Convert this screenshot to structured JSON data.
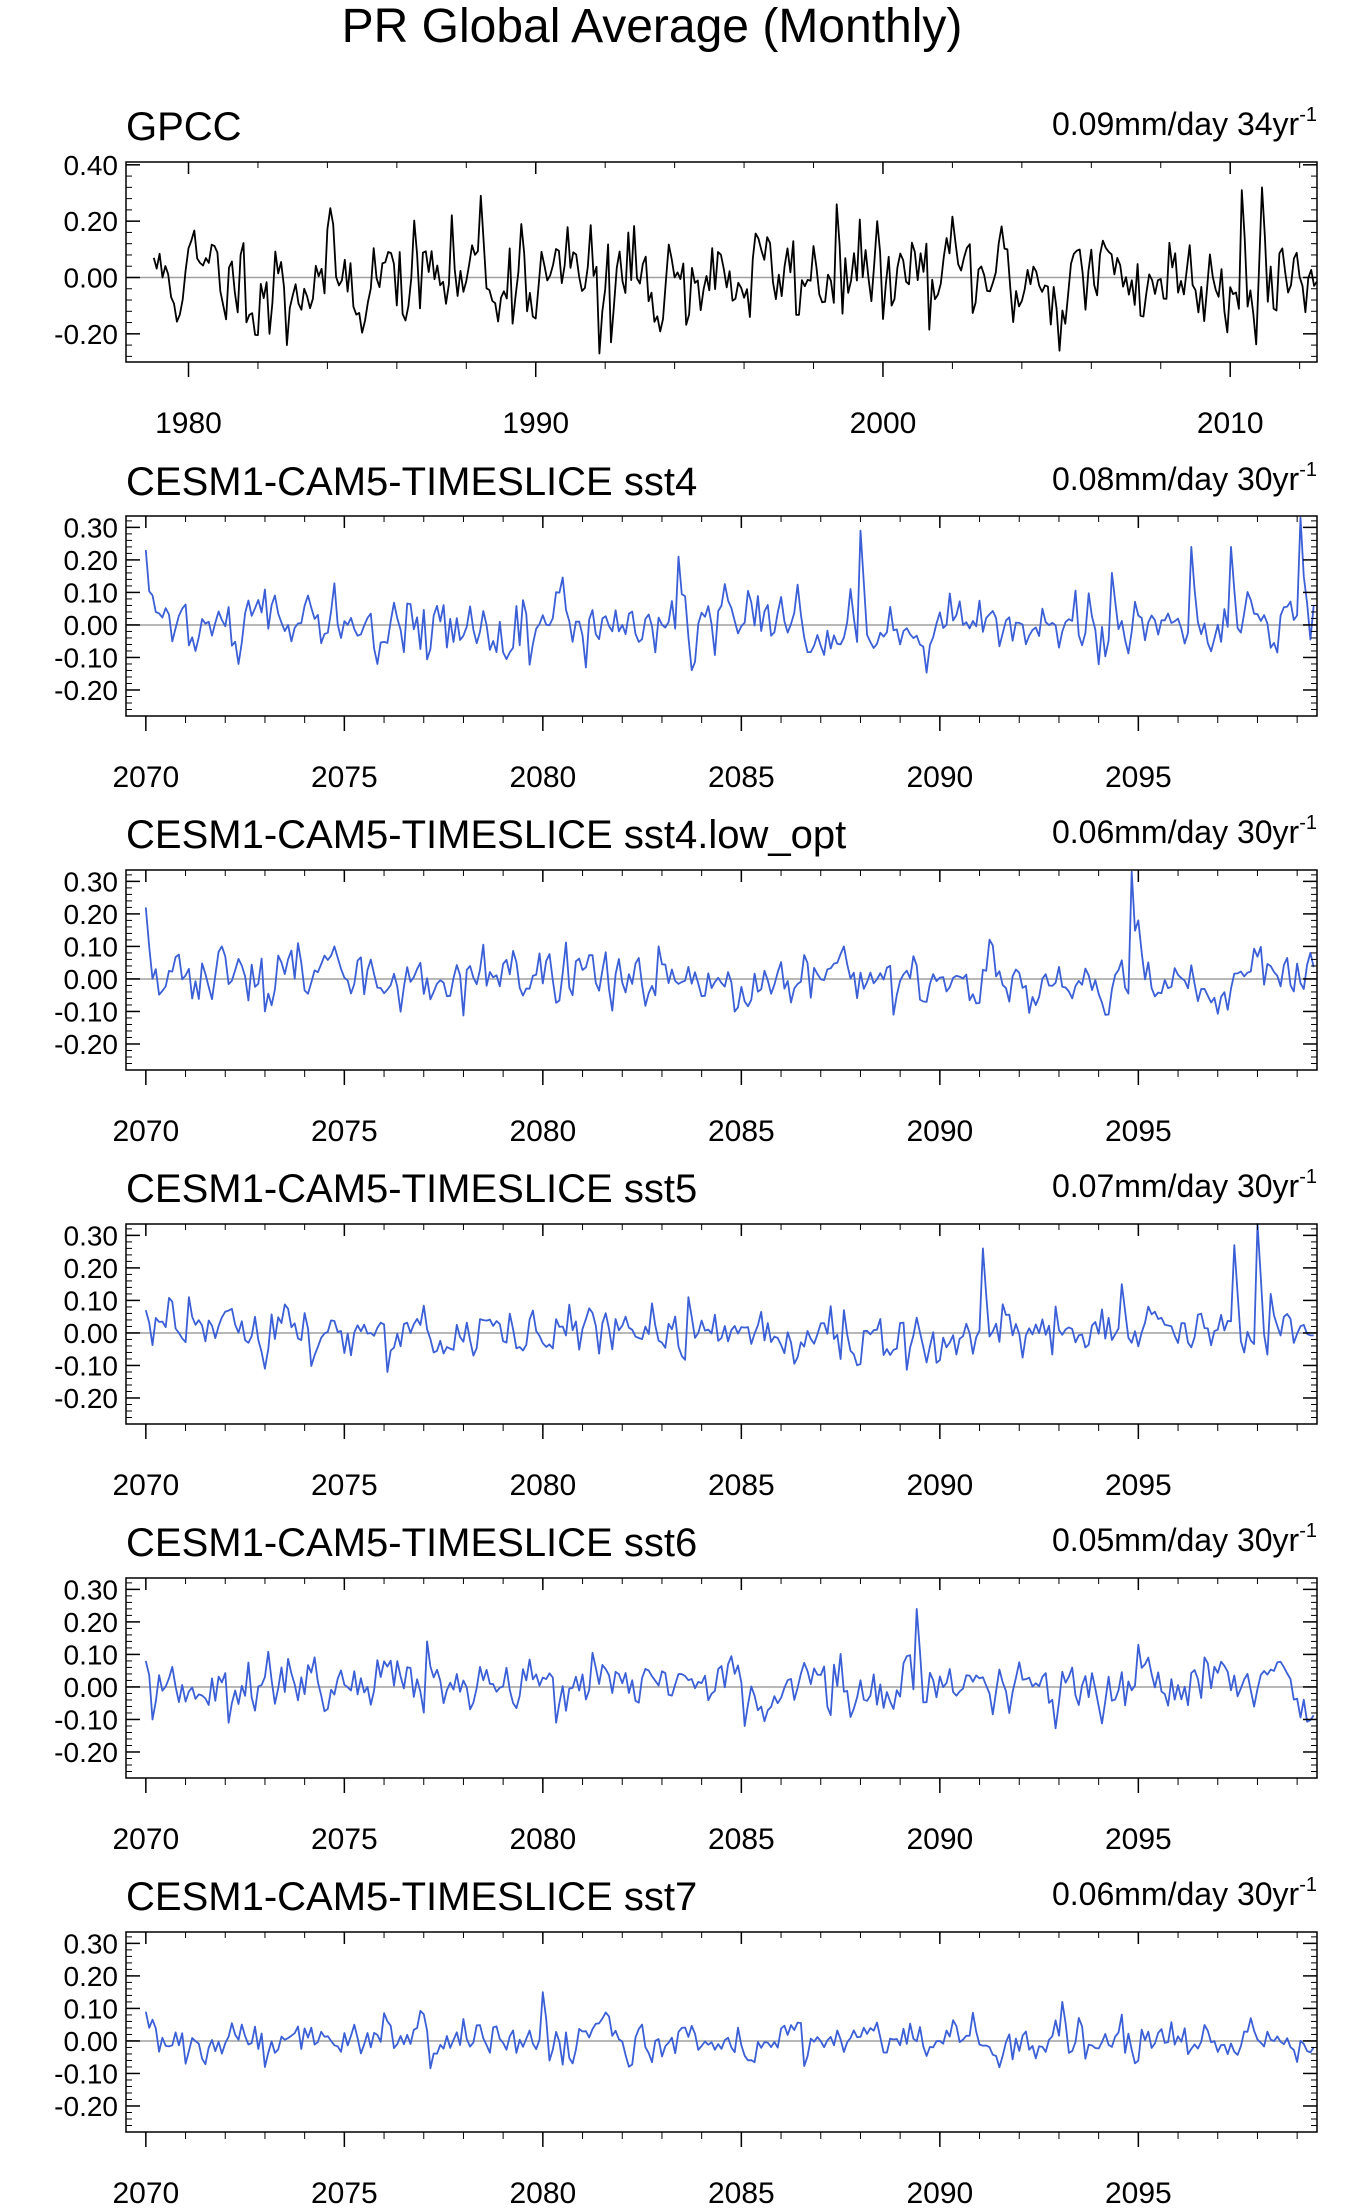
{
  "figure": {
    "title": "PR Global Average (Monthly)"
  },
  "colors": {
    "obs_line": "#000000",
    "model_line": "#3a5fd6",
    "zero_line": "#a0a0a0",
    "axis": "#000000"
  },
  "chart_data": [
    {
      "type": "line",
      "title": "GPCC",
      "trend_label": "0.09mm/day 34yr",
      "trend_label_sup": "-1",
      "x_start": 1979.0,
      "x_end": 2012.5,
      "xlim": [
        1978.2,
        2012.5
      ],
      "ylim": [
        -0.3,
        0.41
      ],
      "xticks": [
        1980,
        1990,
        2000,
        2010
      ],
      "xtick_labels": [
        "1980",
        "1990",
        "2000",
        "2010"
      ],
      "yticks": [
        0.4,
        0.2,
        0.0,
        -0.2
      ],
      "ytick_labels": [
        "0.40",
        "0.20",
        "0.00",
        "-0.20"
      ],
      "series": [
        {
          "color": "#000000",
          "seed": 11,
          "amp": 0.085,
          "persist": 0.45,
          "events": [
            [
              1979.0,
              0.07
            ],
            [
              1982.3,
              -0.2
            ],
            [
              1982.8,
              -0.24
            ],
            [
              1988.4,
              0.29
            ],
            [
              1989.6,
              0.19
            ],
            [
              1991.8,
              -0.27
            ],
            [
              1992.2,
              -0.23
            ],
            [
              1998.7,
              0.26
            ],
            [
              1999.8,
              0.2
            ],
            [
              2005.1,
              -0.26
            ],
            [
              2010.3,
              0.31
            ],
            [
              2010.9,
              0.32
            ],
            [
              2012.4,
              -0.03
            ]
          ]
        }
      ]
    },
    {
      "type": "line",
      "title": "CESM1-CAM5-TIMESLICE sst4",
      "trend_label": "0.08mm/day 30yr",
      "trend_label_sup": "-1",
      "x_start": 2070.0,
      "x_end": 2099.4,
      "xlim": [
        2069.5,
        2099.5
      ],
      "ylim": [
        -0.28,
        0.335
      ],
      "xticks": [
        2070,
        2075,
        2080,
        2085,
        2090,
        2095
      ],
      "xtick_labels": [
        "2070",
        "2075",
        "2080",
        "2085",
        "2090",
        "2095"
      ],
      "yticks": [
        0.3,
        0.2,
        0.1,
        0.0,
        -0.1,
        -0.2
      ],
      "ytick_labels": [
        "0.30",
        "0.20",
        "0.10",
        "0.00",
        "-0.10",
        "-0.20"
      ],
      "series": [
        {
          "color": "#3a5fd6",
          "seed": 22,
          "amp": 0.045,
          "persist": 0.35,
          "events": [
            [
              2070.0,
              0.23
            ],
            [
              2072.3,
              -0.12
            ],
            [
              2075.8,
              -0.12
            ],
            [
              2083.4,
              0.21
            ],
            [
              2088.0,
              0.29
            ],
            [
              2094.3,
              0.16
            ],
            [
              2096.3,
              0.24
            ],
            [
              2097.3,
              0.24
            ],
            [
              2099.1,
              0.33
            ],
            [
              2099.4,
              0.06
            ]
          ]
        }
      ]
    },
    {
      "type": "line",
      "title": "CESM1-CAM5-TIMESLICE sst4.low_opt",
      "trend_label": "0.06mm/day 30yr",
      "trend_label_sup": "-1",
      "x_start": 2070.0,
      "x_end": 2099.4,
      "xlim": [
        2069.5,
        2099.5
      ],
      "ylim": [
        -0.28,
        0.335
      ],
      "xticks": [
        2070,
        2075,
        2080,
        2085,
        2090,
        2095
      ],
      "xtick_labels": [
        "2070",
        "2075",
        "2080",
        "2085",
        "2090",
        "2095"
      ],
      "yticks": [
        0.3,
        0.2,
        0.1,
        0.0,
        -0.1,
        -0.2
      ],
      "ytick_labels": [
        "0.30",
        "0.20",
        "0.10",
        "0.00",
        "-0.10",
        "-0.20"
      ],
      "series": [
        {
          "color": "#3a5fd6",
          "seed": 33,
          "amp": 0.04,
          "persist": 0.45,
          "events": [
            [
              2070.0,
              0.22
            ],
            [
              2073.0,
              -0.1
            ],
            [
              2073.8,
              0.11
            ],
            [
              2082.9,
              0.1
            ],
            [
              2087.6,
              0.1
            ],
            [
              2088.8,
              -0.11
            ],
            [
              2094.8,
              0.33
            ],
            [
              2095.0,
              0.18
            ],
            [
              2099.3,
              0.08
            ]
          ]
        }
      ]
    },
    {
      "type": "line",
      "title": "CESM1-CAM5-TIMESLICE sst5",
      "trend_label": "0.07mm/day 30yr",
      "trend_label_sup": "-1",
      "x_start": 2070.0,
      "x_end": 2099.4,
      "xlim": [
        2069.5,
        2099.5
      ],
      "ylim": [
        -0.28,
        0.335
      ],
      "xticks": [
        2070,
        2075,
        2080,
        2085,
        2090,
        2095
      ],
      "xtick_labels": [
        "2070",
        "2075",
        "2080",
        "2085",
        "2090",
        "2095"
      ],
      "yticks": [
        0.3,
        0.2,
        0.1,
        0.0,
        -0.1,
        -0.2
      ],
      "ytick_labels": [
        "0.30",
        "0.20",
        "0.10",
        "0.00",
        "-0.10",
        "-0.20"
      ],
      "series": [
        {
          "color": "#3a5fd6",
          "seed": 44,
          "amp": 0.042,
          "persist": 0.4,
          "events": [
            [
              2070.0,
              0.07
            ],
            [
              2071.1,
              0.11
            ],
            [
              2073.0,
              -0.11
            ],
            [
              2076.1,
              -0.12
            ],
            [
              2083.7,
              0.11
            ],
            [
              2091.1,
              0.26
            ],
            [
              2094.6,
              0.15
            ],
            [
              2097.4,
              0.27
            ],
            [
              2098.0,
              0.38
            ],
            [
              2098.3,
              0.12
            ]
          ]
        }
      ]
    },
    {
      "type": "line",
      "title": "CESM1-CAM5-TIMESLICE sst6",
      "trend_label": "0.05mm/day 30yr",
      "trend_label_sup": "-1",
      "x_start": 2070.0,
      "x_end": 2099.4,
      "xlim": [
        2069.5,
        2099.5
      ],
      "ylim": [
        -0.28,
        0.335
      ],
      "xticks": [
        2070,
        2075,
        2080,
        2085,
        2090,
        2095
      ],
      "xtick_labels": [
        "2070",
        "2075",
        "2080",
        "2085",
        "2090",
        "2095"
      ],
      "yticks": [
        0.3,
        0.2,
        0.1,
        0.0,
        -0.1,
        -0.2
      ],
      "ytick_labels": [
        "0.30",
        "0.20",
        "0.10",
        "0.00",
        "-0.10",
        "-0.20"
      ],
      "series": [
        {
          "color": "#3a5fd6",
          "seed": 55,
          "amp": 0.042,
          "persist": 0.4,
          "events": [
            [
              2070.0,
              0.08
            ],
            [
              2070.2,
              -0.1
            ],
            [
              2072.1,
              -0.11
            ],
            [
              2077.1,
              0.14
            ],
            [
              2080.3,
              -0.11
            ],
            [
              2085.1,
              -0.12
            ],
            [
              2089.4,
              0.24
            ],
            [
              2095.0,
              0.13
            ]
          ]
        }
      ]
    },
    {
      "type": "line",
      "title": "CESM1-CAM5-TIMESLICE sst7",
      "trend_label": "0.06mm/day 30yr",
      "trend_label_sup": "-1",
      "x_start": 2070.0,
      "x_end": 2099.4,
      "xlim": [
        2069.5,
        2099.5
      ],
      "ylim": [
        -0.28,
        0.335
      ],
      "xticks": [
        2070,
        2075,
        2080,
        2085,
        2090,
        2095
      ],
      "xtick_labels": [
        "2070",
        "2075",
        "2080",
        "2085",
        "2090",
        "2095"
      ],
      "yticks": [
        0.3,
        0.2,
        0.1,
        0.0,
        -0.1,
        -0.2
      ],
      "ytick_labels": [
        "0.30",
        "0.20",
        "0.10",
        "0.00",
        "-0.10",
        "-0.20"
      ],
      "series": [
        {
          "color": "#3a5fd6",
          "seed": 66,
          "amp": 0.03,
          "persist": 0.35,
          "events": [
            [
              2070.0,
              0.09
            ],
            [
              2071.0,
              -0.07
            ],
            [
              2073.0,
              -0.08
            ],
            [
              2080.0,
              0.15
            ],
            [
              2080.2,
              -0.06
            ],
            [
              2093.1,
              0.12
            ],
            [
              2097.8,
              0.07
            ],
            [
              2099.4,
              -0.02
            ]
          ]
        }
      ]
    }
  ]
}
